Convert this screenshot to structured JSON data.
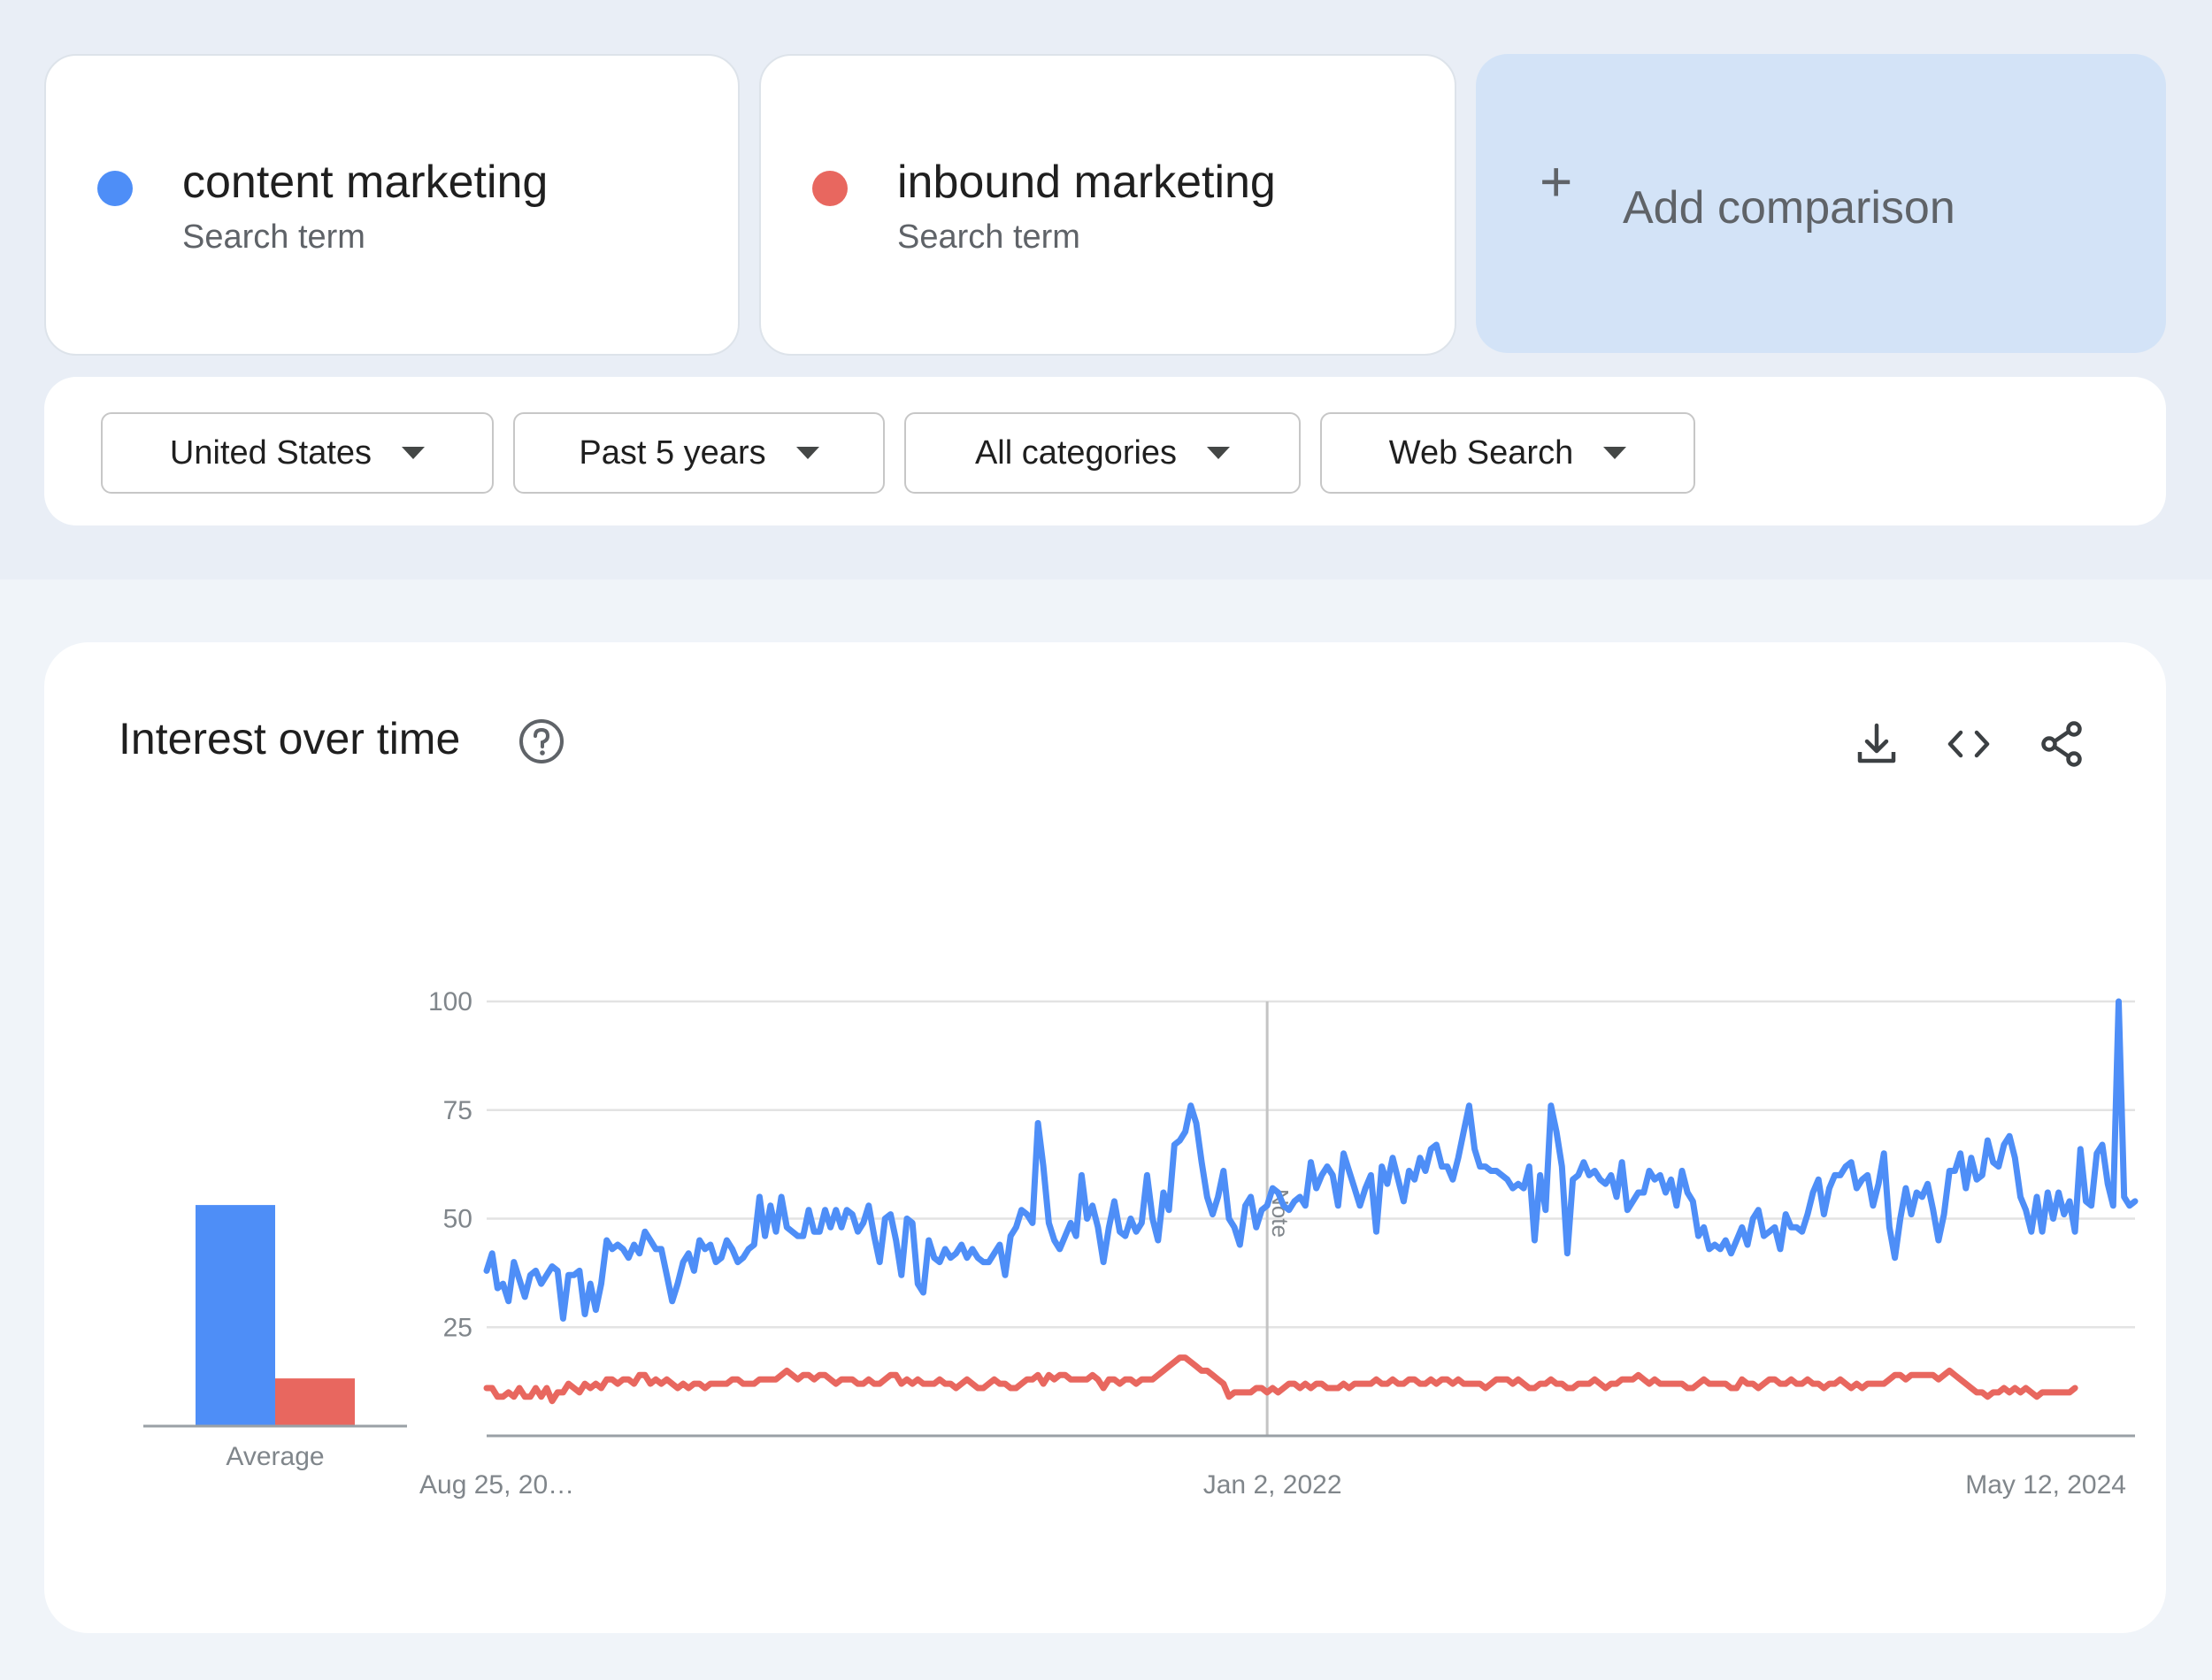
{
  "terms": [
    {
      "name": "content marketing",
      "subtitle": "Search term",
      "color": "#4e8ef7"
    },
    {
      "name": "inbound marketing",
      "subtitle": "Search term",
      "color": "#e8675f"
    }
  ],
  "add_comparison": {
    "icon": "plus-icon",
    "label": "Add comparison"
  },
  "filters": [
    {
      "label": "United States",
      "icon": "caret-down-icon"
    },
    {
      "label": "Past 5 years",
      "icon": "caret-down-icon"
    },
    {
      "label": "All categories",
      "icon": "caret-down-icon"
    },
    {
      "label": "Web Search",
      "icon": "caret-down-icon"
    }
  ],
  "chart_section": {
    "title": "Interest over time",
    "icons": [
      "help-icon",
      "download-icon",
      "embed-icon",
      "share-icon"
    ]
  },
  "chart_data": [
    {
      "type": "bar",
      "categories": [
        "Average"
      ],
      "series": [
        {
          "name": "content marketing",
          "values": [
            51
          ],
          "color": "#4e8ef7"
        },
        {
          "name": "inbound marketing",
          "values": [
            11
          ],
          "color": "#e8675f"
        }
      ],
      "ylim": [
        0,
        100
      ]
    },
    {
      "type": "line",
      "x_tick_labels": [
        "Aug 25, 20…",
        "Jan 2, 2022",
        "May 12, 2024"
      ],
      "y_ticks": [
        25,
        50,
        75,
        100
      ],
      "ylim": [
        0,
        100
      ],
      "grid": true,
      "annotation": {
        "text": "Note",
        "at_label": "Jan 2, 2022"
      },
      "series": [
        {
          "name": "content marketing",
          "color": "#4e8ef7",
          "values": [
            38,
            42,
            34,
            35,
            31,
            40,
            36,
            32,
            37,
            38,
            35,
            37,
            39,
            38,
            27,
            37,
            37,
            38,
            28,
            35,
            29,
            35,
            45,
            43,
            44,
            43,
            41,
            44,
            42,
            47,
            45,
            43,
            43,
            37,
            31,
            35,
            40,
            42,
            38,
            45,
            43,
            44,
            40,
            41,
            45,
            43,
            40,
            41,
            43,
            44,
            55,
            46,
            53,
            47,
            55,
            48,
            47,
            46,
            46,
            52,
            47,
            47,
            52,
            48,
            52,
            48,
            52,
            51,
            47,
            49,
            53,
            46,
            40,
            50,
            51,
            45,
            37,
            50,
            49,
            35,
            33,
            45,
            41,
            40,
            43,
            41,
            42,
            44,
            41,
            43,
            41,
            40,
            40,
            42,
            44,
            37,
            46,
            48,
            52,
            51,
            49,
            72,
            62,
            49,
            45,
            43,
            46,
            49,
            46,
            60,
            50,
            53,
            48,
            40,
            48,
            54,
            47,
            46,
            50,
            47,
            49,
            60,
            50,
            45,
            56,
            52,
            67,
            68,
            70,
            76,
            72,
            63,
            55,
            51,
            55,
            61,
            50,
            48,
            44,
            53,
            55,
            48,
            52,
            53,
            57,
            56,
            53,
            52,
            54,
            55,
            53,
            63,
            57,
            60,
            62,
            60,
            53,
            65,
            61,
            57,
            53,
            57,
            60,
            47,
            62,
            58,
            64,
            59,
            54,
            61,
            59,
            64,
            61,
            66,
            67,
            62,
            62,
            59,
            64,
            70,
            76,
            66,
            62,
            62,
            61,
            61,
            60,
            59,
            57,
            58,
            57,
            62,
            45,
            60,
            52,
            76,
            70,
            62,
            42,
            59,
            60,
            63,
            60,
            61,
            59,
            58,
            60,
            55,
            63,
            52,
            54,
            56,
            56,
            61,
            59,
            60,
            56,
            59,
            53,
            61,
            56,
            54,
            46,
            48,
            43,
            44,
            43,
            45,
            42,
            45,
            48,
            44,
            50,
            52,
            46,
            47,
            48,
            43,
            51,
            48,
            48,
            47,
            51,
            56,
            59,
            51,
            57,
            60,
            60,
            62,
            63,
            57,
            59,
            60,
            53,
            58,
            65,
            48,
            41,
            50,
            57,
            51,
            56,
            55,
            58,
            52,
            45,
            51,
            61,
            61,
            65,
            57,
            64,
            59,
            60,
            68,
            63,
            62,
            67,
            69,
            64,
            55,
            52,
            47,
            55,
            47,
            56,
            50,
            56,
            51,
            54,
            47,
            66,
            54,
            53,
            65,
            67,
            58,
            53,
            100,
            55,
            53,
            54
          ]
        },
        {
          "name": "inbound marketing",
          "color": "#e8675f",
          "values": [
            11,
            11,
            9,
            9,
            10,
            9,
            11,
            9,
            9,
            11,
            9,
            11,
            8,
            10,
            10,
            12,
            11,
            10,
            12,
            11,
            12,
            11,
            13,
            13,
            12,
            13,
            13,
            12,
            14,
            14,
            12,
            13,
            12,
            13,
            12,
            11,
            12,
            11,
            12,
            12,
            11,
            12,
            12,
            12,
            12,
            13,
            13,
            12,
            12,
            12,
            13,
            13,
            13,
            13,
            14,
            15,
            14,
            13,
            14,
            14,
            13,
            14,
            14,
            13,
            12,
            13,
            13,
            13,
            12,
            12,
            13,
            12,
            12,
            13,
            14,
            14,
            12,
            13,
            12,
            13,
            12,
            12,
            12,
            13,
            12,
            12,
            11,
            12,
            13,
            12,
            11,
            11,
            12,
            13,
            12,
            12,
            11,
            11,
            12,
            13,
            13,
            14,
            12,
            14,
            13,
            14,
            14,
            13,
            13,
            13,
            13,
            14,
            13,
            11,
            13,
            13,
            12,
            13,
            13,
            12,
            13,
            13,
            13,
            14,
            15,
            16,
            17,
            18,
            18,
            17,
            16,
            15,
            15,
            14,
            13,
            12,
            9,
            10,
            10,
            10,
            10,
            11,
            11,
            10,
            11,
            10,
            11,
            12,
            12,
            11,
            12,
            11,
            12,
            12,
            11,
            11,
            11,
            12,
            11,
            12,
            12,
            12,
            12,
            13,
            12,
            12,
            13,
            12,
            12,
            13,
            13,
            12,
            12,
            13,
            12,
            13,
            13,
            12,
            13,
            12,
            12,
            12,
            12,
            11,
            12,
            13,
            13,
            13,
            12,
            13,
            12,
            11,
            11,
            12,
            12,
            13,
            12,
            12,
            11,
            11,
            12,
            12,
            12,
            13,
            12,
            11,
            12,
            12,
            13,
            13,
            13,
            14,
            13,
            12,
            13,
            12,
            12,
            12,
            12,
            12,
            11,
            11,
            12,
            13,
            12,
            12,
            12,
            12,
            11,
            11,
            13,
            12,
            12,
            11,
            12,
            13,
            13,
            12,
            12,
            13,
            12,
            12,
            13,
            12,
            12,
            11,
            12,
            12,
            13,
            12,
            11,
            12,
            11,
            12,
            12,
            12,
            12,
            13,
            14,
            14,
            13,
            14,
            14,
            14,
            14,
            14,
            13,
            14,
            15,
            14,
            13,
            12,
            11,
            10,
            10,
            9,
            10,
            10,
            11,
            10,
            11,
            10,
            11,
            10,
            9,
            10,
            10,
            10,
            10,
            10,
            10,
            11
          ]
        }
      ]
    }
  ]
}
